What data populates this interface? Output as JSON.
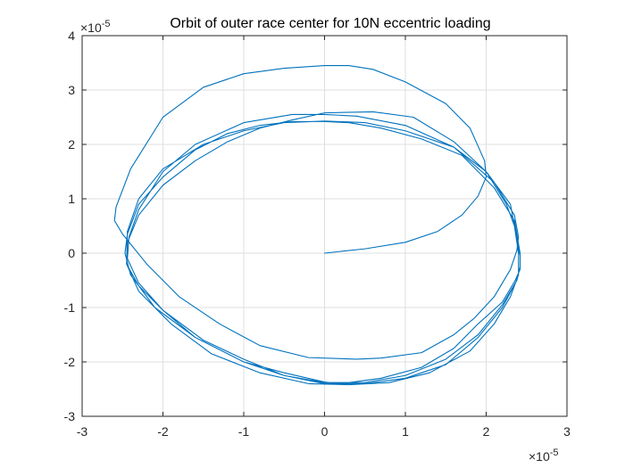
{
  "chart_data": {
    "type": "line",
    "title": "Orbit of outer race center for 10N eccentric loading",
    "xlabel": "",
    "ylabel": "",
    "x_multiplier": {
      "base": "×10",
      "exponent": "-5"
    },
    "y_multiplier": {
      "base": "×10",
      "exponent": "-5"
    },
    "xlim": [
      -3,
      3
    ],
    "ylim": [
      -3,
      4
    ],
    "xticks": [
      -3,
      -2,
      -1,
      0,
      1,
      2,
      3
    ],
    "yticks": [
      -3,
      -2,
      -1,
      0,
      1,
      2,
      3,
      4
    ],
    "xtick_labels": [
      "-3",
      "-2",
      "-1",
      "0",
      "1",
      "2",
      "3"
    ],
    "ytick_labels": [
      "-3",
      "-2",
      "-1",
      "0",
      "1",
      "2",
      "3",
      "4"
    ],
    "grid": true,
    "box": true,
    "colors": {
      "line": "#0072BD",
      "grid": "#DFDFDF",
      "axis": "#262626"
    },
    "series": [
      {
        "x": [
          0.0,
          0.5,
          1.0,
          1.4,
          1.7,
          1.9,
          2.0,
          1.98,
          1.8,
          1.5,
          1.0,
          0.6,
          0.3,
          0.0,
          -0.5,
          -1.0,
          -1.5,
          -2.0,
          -2.4,
          -2.58,
          -2.6,
          -2.5,
          -2.2,
          -1.8,
          -1.3,
          -0.8,
          -0.2,
          0.4,
          0.7,
          1.2,
          1.6,
          1.85,
          2.1,
          2.3,
          2.38,
          2.4,
          2.35,
          2.1,
          1.6,
          1.0,
          0.4,
          0.0,
          -0.4,
          -1.0,
          -1.6,
          -2.0,
          -2.3,
          -2.42,
          -2.44,
          -2.3,
          -2.0,
          -1.5,
          -1.0,
          -0.5,
          0.0,
          0.5,
          1.0,
          1.5,
          1.9,
          2.2,
          2.38,
          2.42,
          2.42,
          2.35,
          2.1,
          1.7,
          1.2,
          0.7,
          0.3,
          0.0,
          -0.4,
          -0.8,
          -1.2,
          -1.6,
          -2.0,
          -2.3,
          -2.44,
          -2.47,
          -2.4,
          -2.1,
          -1.6,
          -1.0,
          -0.5,
          0.0,
          0.5,
          1.0,
          1.5,
          1.9,
          2.2,
          2.38,
          2.42,
          2.42,
          2.3,
          2.0,
          1.6,
          1.0,
          0.5,
          0.0,
          -0.5,
          -1.0,
          -1.5,
          -2.0,
          -2.3,
          -2.44,
          -2.45,
          -2.3,
          -1.9,
          -1.4,
          -0.8,
          -0.2,
          0.3,
          0.8,
          1.3,
          1.8,
          2.1,
          2.3,
          2.4,
          2.4,
          2.35,
          2.25,
          2.0,
          1.6,
          1.1,
          0.6,
          0.0,
          -0.4,
          -0.8,
          -1.2,
          -1.6,
          -2.0,
          -2.3,
          -2.44,
          -2.45,
          -2.3,
          -2.0,
          -1.6,
          -1.0,
          -0.5,
          0.0,
          0.2,
          0.7,
          1.2,
          1.6,
          1.9,
          2.2,
          2.36,
          2.42,
          2.42
        ],
        "y": [
          0.0,
          0.08,
          0.2,
          0.4,
          0.7,
          1.05,
          1.4,
          1.7,
          2.3,
          2.75,
          3.15,
          3.38,
          3.45,
          3.45,
          3.4,
          3.3,
          3.05,
          2.5,
          1.55,
          0.85,
          0.6,
          0.35,
          -0.2,
          -0.8,
          -1.3,
          -1.7,
          -1.92,
          -1.95,
          -1.93,
          -1.83,
          -1.5,
          -1.2,
          -0.8,
          -0.3,
          0.05,
          0.3,
          0.7,
          1.3,
          1.95,
          2.35,
          2.52,
          2.55,
          2.55,
          2.4,
          2.0,
          1.5,
          0.8,
          0.3,
          -0.1,
          -0.55,
          -1.05,
          -1.6,
          -1.95,
          -2.25,
          -2.38,
          -2.38,
          -2.25,
          -1.95,
          -1.5,
          -0.95,
          -0.5,
          -0.25,
          0.0,
          0.6,
          1.2,
          1.8,
          2.1,
          2.3,
          2.4,
          2.42,
          2.42,
          2.35,
          2.2,
          1.9,
          1.4,
          0.9,
          0.35,
          0.0,
          -0.4,
          -1.0,
          -1.55,
          -2.0,
          -2.25,
          -2.4,
          -2.4,
          -2.3,
          -2.05,
          -1.55,
          -1.0,
          -0.5,
          -0.25,
          -0.05,
          0.9,
          1.5,
          1.95,
          2.25,
          2.4,
          2.43,
          2.4,
          2.25,
          2.0,
          1.55,
          1.0,
          0.4,
          -0.2,
          -0.7,
          -1.3,
          -1.85,
          -2.2,
          -2.4,
          -2.42,
          -2.38,
          -2.2,
          -1.8,
          -1.3,
          -0.8,
          -0.4,
          0.0,
          0.5,
          0.9,
          1.5,
          2.05,
          2.5,
          2.6,
          2.58,
          2.45,
          2.3,
          2.05,
          1.7,
          1.25,
          0.7,
          0.2,
          -0.2,
          -0.6,
          -1.05,
          -1.55,
          -2.0,
          -2.2,
          -2.37,
          -2.4,
          -2.3,
          -2.1,
          -1.75,
          -1.3,
          -0.9,
          -0.5,
          -0.3,
          -0.1
        ]
      }
    ]
  }
}
